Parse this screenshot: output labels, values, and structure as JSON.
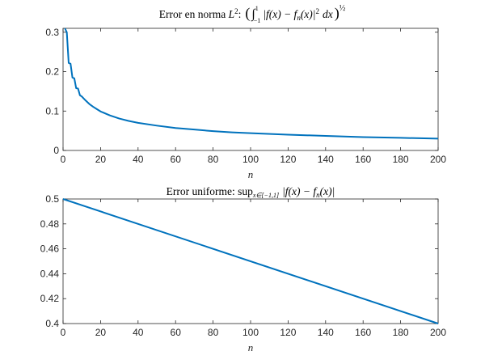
{
  "colors": {
    "series": "#0072BD"
  },
  "chart_data": [
    {
      "type": "line",
      "title_parts": {
        "lead": "Error en norma ",
        "symbol": "L",
        "symbol_sup": "2",
        "colon": ":",
        "lparen": "(",
        "integral": "∫",
        "int_upper": "1",
        "int_lower": "−1",
        "integrand": "|f(x) − f",
        "integrand_sub": "n",
        "integrand_tail": "(x)|",
        "power": "2",
        "differential": "dx",
        "rparen": ")",
        "outer_exp": "½"
      },
      "xlabel": "n",
      "ylabel": "",
      "xlim": [
        0,
        200
      ],
      "ylim": [
        0,
        0.31
      ],
      "xticks": [
        0,
        20,
        40,
        60,
        80,
        100,
        120,
        140,
        160,
        180,
        200
      ],
      "yticks": [
        0,
        0.1,
        0.2,
        0.3
      ],
      "ytick_labels": [
        "0",
        "0.1",
        "0.2",
        "0.3"
      ],
      "grid": false,
      "series": [
        {
          "x": [
            1,
            2,
            3,
            4,
            5,
            6,
            7,
            8,
            9,
            10,
            12,
            14,
            16,
            18,
            20,
            25,
            30,
            35,
            40,
            50,
            60,
            70,
            80,
            90,
            100,
            120,
            140,
            160,
            180,
            200
          ],
          "y": [
            0.31,
            0.3,
            0.222,
            0.22,
            0.185,
            0.183,
            0.158,
            0.157,
            0.14,
            0.137,
            0.127,
            0.118,
            0.111,
            0.105,
            0.099,
            0.089,
            0.081,
            0.075,
            0.07,
            0.063,
            0.057,
            0.053,
            0.049,
            0.046,
            0.044,
            0.04,
            0.037,
            0.034,
            0.032,
            0.03
          ]
        }
      ]
    },
    {
      "type": "line",
      "title_parts": {
        "lead": "Error uniforme: ",
        "sup": "sup",
        "sup_sub": "x∈[−1,1]",
        "expr_a": "|f(x) − f",
        "expr_sub": "n",
        "expr_b": "(x)|"
      },
      "xlabel": "n",
      "ylabel": "",
      "xlim": [
        0,
        200
      ],
      "ylim": [
        0.4,
        0.5
      ],
      "xticks": [
        0,
        20,
        40,
        60,
        80,
        100,
        120,
        140,
        160,
        180,
        200
      ],
      "yticks": [
        0.4,
        0.42,
        0.44,
        0.46,
        0.48,
        0.5
      ],
      "ytick_labels": [
        "0.4",
        "0.42",
        "0.44",
        "0.46",
        "0.48",
        "0.5"
      ],
      "grid": false,
      "series": [
        {
          "x": [
            0,
            200
          ],
          "y": [
            0.5,
            0.4
          ]
        }
      ]
    }
  ]
}
